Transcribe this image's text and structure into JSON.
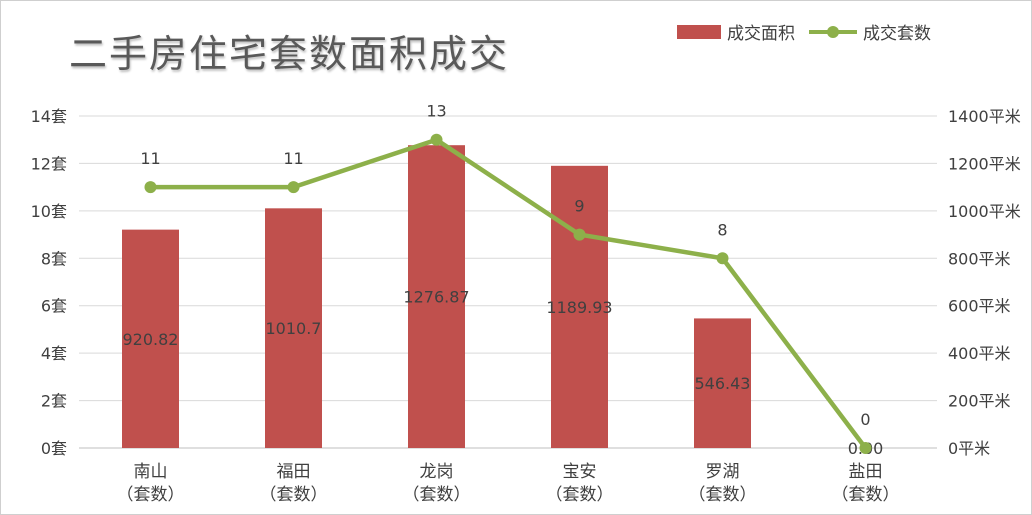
{
  "chart_data": {
    "type": "bar",
    "title": "二手房住宅套数面积成交",
    "categories": [
      "南山（套数）",
      "福田（套数）",
      "龙岗（套数）",
      "宝安（套数）",
      "罗湖（套数）",
      "盐田（套数）"
    ],
    "category_lines": [
      [
        "南山",
        "（套数）"
      ],
      [
        "福田",
        "（套数）"
      ],
      [
        "龙岗",
        "（套数）"
      ],
      [
        "宝安",
        "（套数）"
      ],
      [
        "罗湖",
        "（套数）"
      ],
      [
        "盐田",
        "（套数）"
      ]
    ],
    "series": [
      {
        "name": "成交面积",
        "type": "bar",
        "axis": "right",
        "values": [
          920.82,
          1010.7,
          1276.87,
          1189.93,
          546.43,
          0.0
        ],
        "labels": [
          "920.82",
          "1010.7",
          "1276.87",
          "1189.93",
          "546.43",
          "0.00"
        ],
        "color": "#c0504d"
      },
      {
        "name": "成交套数",
        "type": "line",
        "axis": "left",
        "values": [
          11,
          11,
          13,
          9,
          8,
          0
        ],
        "labels": [
          "11",
          "11",
          "13",
          "9",
          "8",
          "0"
        ],
        "color": "#8db04a"
      }
    ],
    "y_left": {
      "min": 0,
      "max": 14,
      "step": 2,
      "ticks": [
        "0套",
        "2套",
        "4套",
        "6套",
        "8套",
        "10套",
        "12套",
        "14套"
      ]
    },
    "y_right": {
      "min": 0,
      "max": 1400,
      "step": 200,
      "ticks": [
        "0平米",
        "200平米",
        "400平米",
        "600平米",
        "800平米",
        "1000平米",
        "1200平米",
        "1400平米"
      ]
    },
    "grid": true,
    "legend_position": "top-right"
  }
}
